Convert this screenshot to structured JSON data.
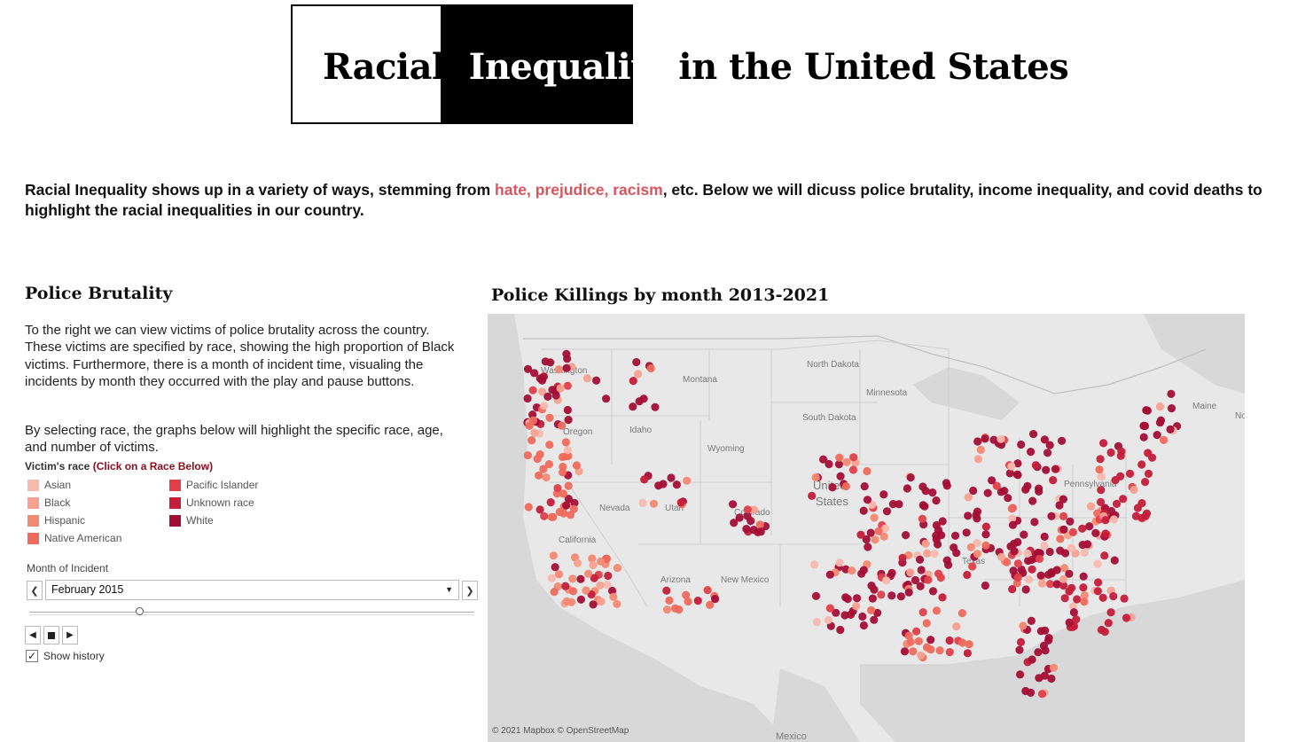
{
  "header": {
    "title_word1": "Racial",
    "title_word2": "Inequality",
    "title_word3": "in the United States"
  },
  "intro": {
    "before": "Racial Inequality shows up in a variety of ways, stemming from ",
    "highlight": "hate, prejudice, racism",
    "after": ", etc. Below we will dicuss police brutality, income inequality, and covid deaths to highlight the racial inequalities in our country."
  },
  "police": {
    "heading": "Police Brutality",
    "para1": "To the right we can view victims of police brutality across the country. These victims are specified by race, showing the high proportion of Black victims. Furthermore, there is a month of incident time, visualing the incidents by month they occurred with the play and pause buttons.",
    "para2": "By selecting race, the graphs below will highlight the specific race, age, and number of victims."
  },
  "legend": {
    "title": "Victim's race",
    "hint": "(Click on a Race Below)",
    "items": [
      {
        "label": "Asian",
        "color": "#f8b9ae"
      },
      {
        "label": "Black",
        "color": "#f7a08f"
      },
      {
        "label": "Hispanic",
        "color": "#f38a73"
      },
      {
        "label": "Native American",
        "color": "#ef6a5c"
      },
      {
        "label": "Pacific Islander",
        "color": "#e0404a"
      },
      {
        "label": "Unknown race",
        "color": "#c41e3a"
      },
      {
        "label": "White",
        "color": "#a30e35"
      }
    ]
  },
  "month_filter": {
    "label": "Month of Incident",
    "value": "February 2015",
    "show_history": "Show history"
  },
  "map": {
    "title": "Police Killings by month 2013-2021",
    "credit": "© 2021 Mapbox  © OpenStreetMap",
    "labels": [
      "Washington",
      "Montana",
      "North Dakota",
      "Minnesota",
      "South Dakota",
      "Oregon",
      "Idaho",
      "Wyoming",
      "Nevada",
      "Utah",
      "Colorado",
      "United",
      "States",
      "California",
      "Arizona",
      "New Mexico",
      "Texas",
      "Pennsylvania",
      "Maine",
      "Mexico",
      "Nova"
    ]
  }
}
